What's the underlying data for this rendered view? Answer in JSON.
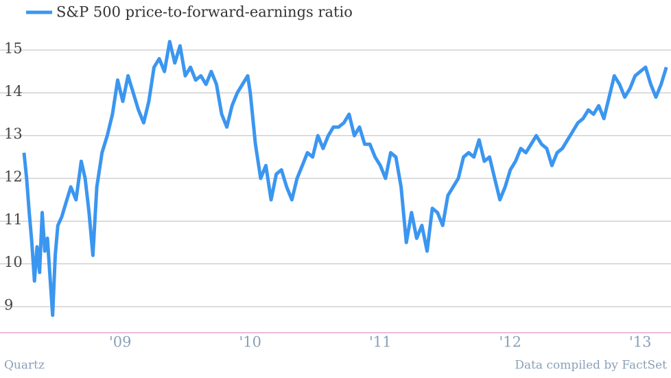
{
  "chart_data": {
    "type": "line",
    "series": [
      {
        "name": "S&P 500 price-to-forward-earnings ratio",
        "color": "#3b96f0",
        "values": [
          12.6,
          12.0,
          11.2,
          10.5,
          9.6,
          10.4,
          9.8,
          11.2,
          10.3,
          10.6,
          9.7,
          8.8,
          10.2,
          10.9,
          11.1,
          11.4,
          11.8,
          11.5,
          12.4,
          12.0,
          11.2,
          10.2,
          11.8,
          12.6,
          13.0,
          13.5,
          14.3,
          13.8,
          14.4,
          14.0,
          13.6,
          13.3,
          13.8,
          14.6,
          14.8,
          14.5,
          15.2,
          14.7,
          15.1,
          14.4,
          14.6,
          14.3,
          14.4,
          14.2,
          14.5,
          14.2,
          13.5,
          13.2,
          13.7,
          14.0,
          14.2,
          14.4,
          14.0,
          12.8,
          12.0,
          12.3,
          11.5,
          12.1,
          12.2,
          11.8,
          11.5,
          12.0,
          12.3,
          12.6,
          12.5,
          13.0,
          12.7,
          13.0,
          13.2,
          13.2,
          13.3,
          13.5,
          13.0,
          13.2,
          12.8,
          12.8,
          12.5,
          12.3,
          12.0,
          12.6,
          12.5,
          11.8,
          10.5,
          11.2,
          10.6,
          10.9,
          10.3,
          11.3,
          11.2,
          10.9,
          11.6,
          11.8,
          12.0,
          12.5,
          12.6,
          12.5,
          12.9,
          12.4,
          12.5,
          12.0,
          11.5,
          11.8,
          12.2,
          12.4,
          12.7,
          12.6,
          12.8,
          13.0,
          12.8,
          12.7,
          12.3,
          12.6,
          12.7,
          12.9,
          13.1,
          13.3,
          13.4,
          13.6,
          13.5,
          13.7,
          13.4,
          13.9,
          14.4,
          14.2,
          13.9,
          14.1,
          14.4,
          14.5,
          14.6,
          14.2,
          13.9,
          14.2,
          14.6
        ]
      }
    ],
    "x": [
      2008.26,
      2008.28,
      2008.3,
      2008.32,
      2008.34,
      2008.36,
      2008.38,
      2008.4,
      2008.42,
      2008.44,
      2008.46,
      2008.48,
      2008.5,
      2008.52,
      2008.55,
      2008.58,
      2008.62,
      2008.66,
      2008.7,
      2008.73,
      2008.76,
      2008.79,
      2008.82,
      2008.86,
      2008.9,
      2008.94,
      2008.98,
      2009.02,
      2009.06,
      2009.1,
      2009.14,
      2009.18,
      2009.22,
      2009.26,
      2009.3,
      2009.34,
      2009.38,
      2009.42,
      2009.46,
      2009.5,
      2009.54,
      2009.58,
      2009.62,
      2009.66,
      2009.7,
      2009.74,
      2009.78,
      2009.82,
      2009.86,
      2009.9,
      2009.94,
      2009.98,
      2010.0,
      2010.04,
      2010.08,
      2010.12,
      2010.16,
      2010.2,
      2010.24,
      2010.28,
      2010.32,
      2010.36,
      2010.4,
      2010.44,
      2010.48,
      2010.52,
      2010.56,
      2010.6,
      2010.64,
      2010.68,
      2010.72,
      2010.76,
      2010.8,
      2010.84,
      2010.88,
      2010.92,
      2010.96,
      2011.0,
      2011.04,
      2011.08,
      2011.12,
      2011.16,
      2011.2,
      2011.24,
      2011.28,
      2011.32,
      2011.36,
      2011.4,
      2011.44,
      2011.48,
      2011.52,
      2011.56,
      2011.6,
      2011.64,
      2011.68,
      2011.72,
      2011.76,
      2011.8,
      2011.84,
      2011.88,
      2011.92,
      2011.96,
      2012.0,
      2012.04,
      2012.08,
      2012.12,
      2012.16,
      2012.2,
      2012.24,
      2012.28,
      2012.32,
      2012.36,
      2012.4,
      2012.44,
      2012.48,
      2012.52,
      2012.56,
      2012.6,
      2012.64,
      2012.68,
      2012.72,
      2012.76,
      2012.8,
      2012.84,
      2012.88,
      2012.92,
      2012.96,
      2013.0,
      2013.04,
      2013.08,
      2013.12,
      2013.16,
      2013.2
    ],
    "xlim": [
      2008.26,
      2013.22
    ],
    "xticks": [
      {
        "value": 2009,
        "label": "'09"
      },
      {
        "value": 2010,
        "label": "'10"
      },
      {
        "value": 2011,
        "label": "'11"
      },
      {
        "value": 2012,
        "label": "'12"
      },
      {
        "value": 2013,
        "label": "'13"
      }
    ],
    "ylim": [
      8.4,
      15.8
    ],
    "yticks": [
      9,
      10,
      11,
      12,
      13,
      14,
      15
    ],
    "grid": true,
    "credit": "Quartz",
    "source": "Data compiled by FactSet"
  }
}
